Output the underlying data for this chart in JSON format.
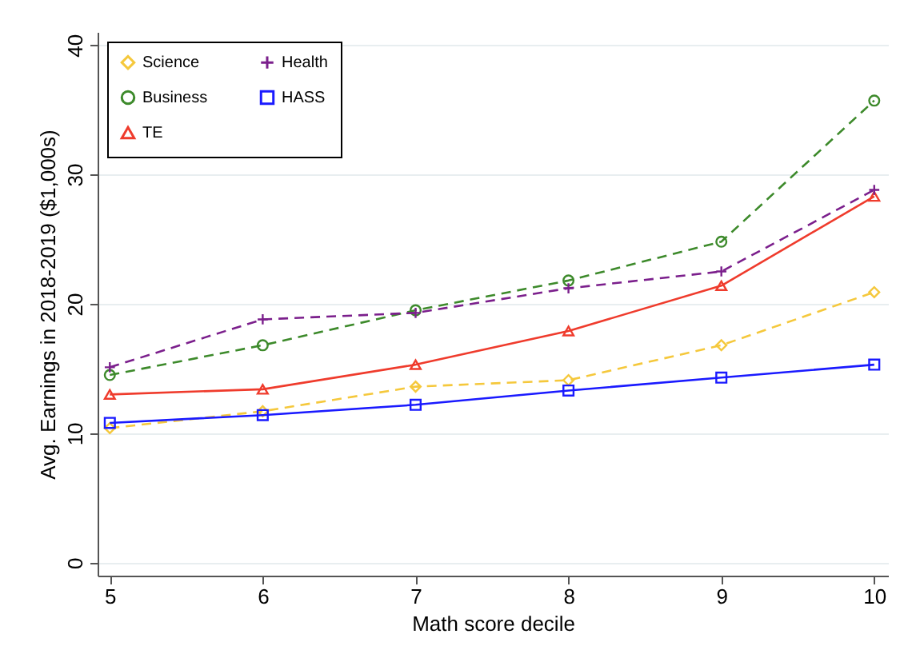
{
  "chart_data": {
    "type": "line",
    "xlabel": "Math score decile",
    "ylabel": "Avg. Earnings in 2018-2019 ($1,000s)",
    "x": [
      5,
      6,
      7,
      8,
      9,
      10
    ],
    "xlim": [
      4.92,
      10.09
    ],
    "xticks": [
      5,
      6,
      7,
      8,
      9,
      10
    ],
    "ylim": [
      -1,
      41
    ],
    "yticks": [
      0,
      10,
      20,
      30,
      40
    ],
    "grid": "y",
    "legend": "top left",
    "series": [
      {
        "name": "Science",
        "color": "#f5c83c",
        "marker": "diamond",
        "line_style": "dashed",
        "values": [
          10.4,
          11.7,
          13.6,
          14.1,
          16.8,
          20.9
        ]
      },
      {
        "name": "Business",
        "color": "#3d8a2b",
        "marker": "circle",
        "line_style": "dashed",
        "values": [
          14.5,
          16.8,
          19.5,
          21.8,
          24.8,
          35.7
        ]
      },
      {
        "name": "TE",
        "color": "#ef3b2c",
        "marker": "triangle",
        "line_style": "solid",
        "values": [
          13.0,
          13.4,
          15.3,
          17.9,
          21.4,
          28.3
        ]
      },
      {
        "name": "Health",
        "color": "#7b1f8c",
        "marker": "cross",
        "line_style": "dashed",
        "values": [
          15.1,
          18.8,
          19.3,
          21.2,
          22.5,
          28.8
        ]
      },
      {
        "name": "HASS",
        "color": "#1a1aff",
        "marker": "square",
        "line_style": "solid",
        "values": [
          10.8,
          11.4,
          12.2,
          13.3,
          14.3,
          15.3
        ]
      }
    ]
  }
}
